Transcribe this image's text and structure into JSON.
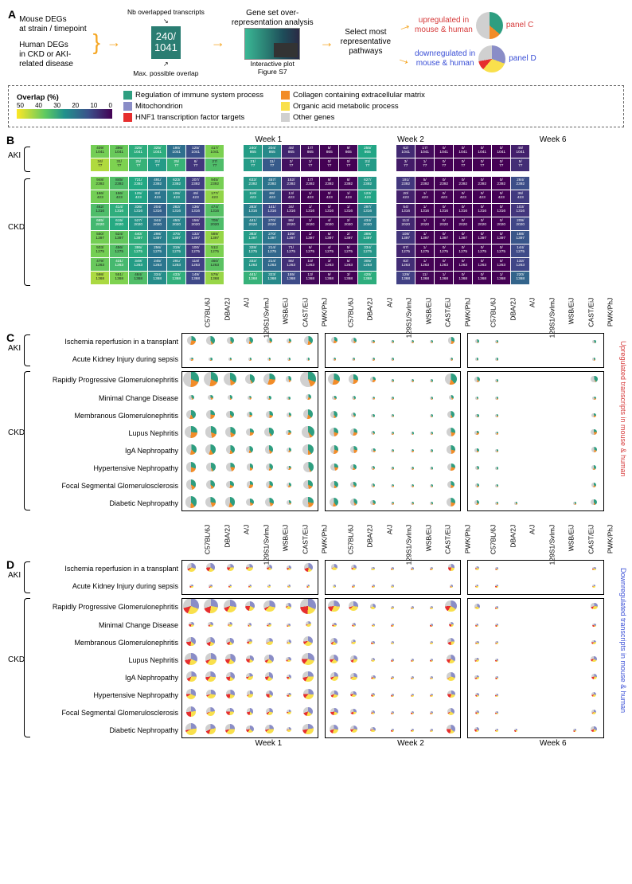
{
  "colors": {
    "immune": "#2e9e80",
    "collagen": "#f28c28",
    "mito": "#8a8dc7",
    "organic": "#f9e04c",
    "hnf1": "#e62e2e",
    "other": "#d0d0d0",
    "arrow": "#f5a623",
    "scale": [
      "#fde725",
      "#a0da39",
      "#4ac16d",
      "#1fa187",
      "#277f8e",
      "#365c8d",
      "#46327e",
      "#440154"
    ]
  },
  "panelA": {
    "mouse": "Mouse DEGs\nat strain / timepoint",
    "human": "Human DEGs\nin CKD or AKI-\nrelated disease",
    "nb_label": "Nb overlapped transcripts",
    "overlap": "240/\n1041",
    "max_label": "Max. possible overlap",
    "gene_set": "Gene set over-\nrepresentation analysis",
    "interactive": "Interactive plot\nFigure S7",
    "select": "Select most\nrepresentative\npathways",
    "up": "upregulated in\nmouse & human",
    "down": "downregulated in\nmouse & human",
    "panelC": "panel C",
    "panelD": "panel D"
  },
  "legend": {
    "title": "Overlap (%)",
    "ticks": [
      "50",
      "40",
      "30",
      "20",
      "10",
      "0"
    ],
    "items": [
      {
        "c": "#2e9e80",
        "t": "Regulation of immune system process"
      },
      {
        "c": "#f28c28",
        "t": "Collagen containing extracellular matrix"
      },
      {
        "c": "#8a8dc7",
        "t": "Mitochondrion"
      },
      {
        "c": "#f9e04c",
        "t": "Organic acid metabolic process"
      },
      {
        "c": "#e62e2e",
        "t": "HNF1 transcription factor targets"
      },
      {
        "c": "#d0d0d0",
        "t": "Other genes"
      }
    ]
  },
  "strains": [
    "C57BL/6J",
    "DBA/2J",
    "A/J",
    "129S1/SvImJ",
    "WSB/EiJ",
    "CAST/EiJ",
    "PWK/PhJ"
  ],
  "weeks": [
    "Week 1",
    "Week 2",
    "Week 6"
  ],
  "aki_label": "AKI",
  "ckd_label": "CKD",
  "diseases_aki": [
    "Ischemia reperfusion in a transplant",
    "Acute Kidney Injury during sepsis"
  ],
  "diseases_ckd": [
    "Rapidly Progressive Glomerulonephritis",
    "Minimal Change Disease",
    "Membranous Glomerulonephritis",
    "Lupus Nephritis",
    "IgA Nephropathy",
    "Hypertensive Nephropathy",
    "Focal Segmental Glomerulosclerosis",
    "Diabetic Nephropathy"
  ],
  "heatmap": {
    "denoms_aki": [
      1041,
      77
    ],
    "denoms_ckd": [
      2392,
      423,
      1316,
      2020,
      1397,
      1275,
      1263,
      1368
    ],
    "weekdenom_w2_aki0": 865,
    "weekdenom_w6_aki0": 1041,
    "aki_w1": [
      [
        409,
        396,
        325,
        325,
        190,
        125,
        417
      ],
      [
        34,
        31,
        25,
        21,
        25,
        6,
        27
      ]
    ],
    "aki_w2": [
      [
        240,
        204,
        48,
        17,
        5,
        9,
        255
      ],
      [
        21,
        11,
        2,
        1,
        0,
        0,
        21
      ]
    ],
    "aki_w6": [
      [
        62,
        17,
        0,
        0,
        0,
        0,
        48
      ],
      [
        3,
        1,
        0,
        0,
        0,
        0,
        5
      ]
    ],
    "ckd_w1": [
      [
        948,
        845,
        721,
        491,
        623,
        207,
        945
      ],
      [
        166,
        156,
        125,
        83,
        106,
        45,
        177
      ],
      [
        462,
        414,
        336,
        204,
        282,
        136,
        474
      ],
      [
        685,
        615,
        527,
        344,
        450,
        156,
        708
      ],
      [
        550,
        524,
        440,
        298,
        370,
        132,
        589
      ],
      [
        503,
        456,
        395,
        256,
        319,
        100,
        511
      ],
      [
        479,
        431,
        349,
        245,
        291,
        118,
        460
      ],
      [
        598,
        551,
        484,
        334,
        433,
        149,
        579
      ]
    ],
    "ckd_w2": [
      [
        632,
        457,
        152,
        17,
        9,
        8,
        627
      ],
      [
        116,
        69,
        13,
        1,
        0,
        1,
        123
      ],
      [
        283,
        141,
        34,
        1,
        0,
        1,
        297
      ],
      [
        441,
        270,
        86,
        1,
        4,
        2,
        434
      ],
      [
        383,
        270,
        109,
        1,
        6,
        2,
        389
      ],
      [
        328,
        214,
        71,
        6,
        4,
        5,
        334
      ],
      [
        332,
        214,
        86,
        10,
        3,
        5,
        305
      ],
      [
        441,
        323,
        155,
        13,
        9,
        3,
        428
      ]
    ],
    "ckd_w6": [
      [
        191,
        5,
        0,
        0,
        0,
        0,
        284
      ],
      [
        20,
        1,
        0,
        0,
        0,
        0,
        36
      ],
      [
        54,
        1,
        0,
        0,
        0,
        0,
        103
      ],
      [
        112,
        1,
        0,
        0,
        0,
        0,
        209
      ],
      [
        108,
        1,
        0,
        0,
        0,
        0,
        188
      ],
      [
        67,
        1,
        0,
        0,
        0,
        0,
        144
      ],
      [
        82,
        1,
        0,
        0,
        0,
        0,
        132
      ],
      [
        129,
        11,
        1,
        0,
        0,
        1,
        220
      ]
    ]
  },
  "panelC": {
    "side": "Upregulated transcripts in mouse & human",
    "side_color": "#d63a3a",
    "base_size": 18,
    "pies": {
      "c_immune": "#2e9e80",
      "c_collagen": "#f28c28",
      "c_other": "#d0d0d0"
    }
  },
  "panelD": {
    "side": "Downregulated transcripts in mouse & human",
    "side_color": "#3a4fd6",
    "pies": {
      "c_mito": "#8a8dc7",
      "c_organic": "#f9e04c",
      "c_hnf1": "#e62e2e",
      "c_other": "#d0d0d0"
    }
  }
}
